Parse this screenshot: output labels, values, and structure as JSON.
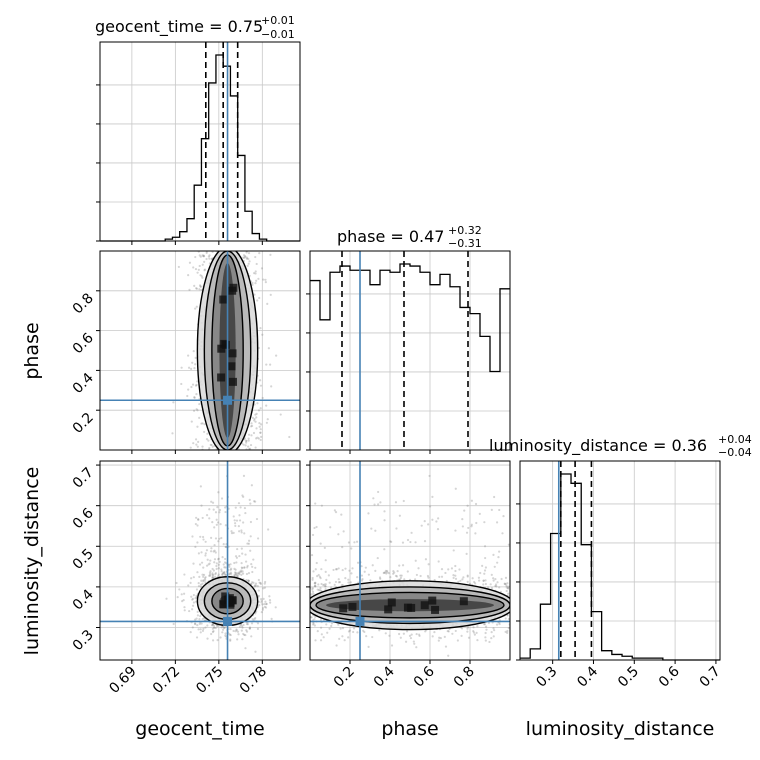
{
  "chart_data": {
    "type": "scatter",
    "kind": "corner-plot",
    "parameters": [
      "geocent_time",
      "phase",
      "luminosity_distance"
    ],
    "axis_labels": {
      "geocent_time": "geocent_time",
      "phase": "phase",
      "luminosity_distance": "luminosity_distance"
    },
    "ranges": {
      "geocent_time": [
        0.668,
        0.806
      ],
      "phase": [
        0.0,
        1.0
      ],
      "luminosity_distance": [
        0.22,
        0.71
      ]
    },
    "ticks": {
      "geocent_time": {
        "values": [
          0.69,
          0.72,
          0.75,
          0.78
        ],
        "labels": [
          "0.69",
          "0.72",
          "0.75",
          "0.78"
        ]
      },
      "phase": {
        "values": [
          0.2,
          0.4,
          0.6,
          0.8
        ],
        "labels": [
          "0.2",
          "0.4",
          "0.6",
          "0.8"
        ]
      },
      "luminosity_distance": {
        "values": [
          0.3,
          0.4,
          0.5,
          0.6,
          0.7
        ],
        "labels": [
          "0.3",
          "0.4",
          "0.5",
          "0.6",
          "0.7"
        ]
      }
    },
    "truths": {
      "geocent_time": 0.756,
      "phase": 0.25,
      "luminosity_distance": 0.315
    },
    "quantiles": {
      "geocent_time": [
        0.741,
        0.753,
        0.763
      ],
      "phase": [
        0.16,
        0.47,
        0.79
      ],
      "luminosity_distance": [
        0.32,
        0.355,
        0.395
      ]
    },
    "titles": {
      "geocent_time": {
        "main": "geocent_time = 0.75",
        "sup": "+0.01",
        "sub": "−0.01"
      },
      "phase": {
        "main": "phase = 0.47",
        "sup": "+0.32",
        "sub": "−0.31"
      },
      "luminosity_distance": {
        "main": "luminosity_distance = 0.36",
        "sup": "+0.04",
        "sub": "−0.04"
      }
    },
    "histograms": {
      "geocent_time": {
        "edges": [
          0.668,
          0.673,
          0.678,
          0.683,
          0.688,
          0.693,
          0.698,
          0.703,
          0.708,
          0.713,
          0.718,
          0.723,
          0.728,
          0.733,
          0.738,
          0.743,
          0.748,
          0.753,
          0.758,
          0.763,
          0.768,
          0.773,
          0.778,
          0.783,
          0.788,
          0.793,
          0.798,
          0.803,
          0.806
        ],
        "counts": [
          0,
          0,
          0,
          0,
          0,
          0,
          0,
          0,
          0,
          1,
          2,
          5,
          12,
          30,
          55,
          85,
          100,
          94,
          78,
          46,
          16,
          4,
          1,
          0,
          0,
          0,
          0,
          0
        ]
      },
      "phase": {
        "edges": [
          0.0,
          0.05,
          0.1,
          0.15,
          0.2,
          0.25,
          0.3,
          0.35,
          0.4,
          0.45,
          0.5,
          0.55,
          0.6,
          0.65,
          0.7,
          0.75,
          0.8,
          0.85,
          0.9,
          0.95,
          1.0
        ],
        "counts": [
          82,
          63,
          86,
          89,
          87,
          87,
          80,
          87,
          86,
          90,
          89,
          86,
          80,
          85,
          79,
          69,
          66,
          55,
          38,
          78
        ]
      },
      "luminosity_distance": {
        "edges": [
          0.22,
          0.245,
          0.27,
          0.295,
          0.32,
          0.345,
          0.37,
          0.395,
          0.42,
          0.445,
          0.47,
          0.495,
          0.52,
          0.545,
          0.57,
          0.595,
          0.62,
          0.645,
          0.67,
          0.695,
          0.71
        ],
        "counts": [
          1,
          6,
          30,
          68,
          100,
          95,
          62,
          26,
          5,
          3,
          2,
          1,
          1,
          1,
          0,
          0,
          0,
          0,
          0,
          0
        ]
      }
    },
    "pairs": [
      {
        "x": "geocent_time",
        "y": "phase",
        "x_sd": 0.008,
        "y_range": [
          0.0,
          1.0
        ]
      },
      {
        "x": "geocent_time",
        "y": "luminosity_distance",
        "x_sd": 0.008,
        "y_center": 0.365,
        "y_sd": 0.025
      },
      {
        "x": "phase",
        "y": "luminosity_distance",
        "x_range": [
          0.0,
          1.0
        ],
        "y_center": 0.355,
        "y_sd": 0.025
      }
    ],
    "colors": {
      "truth": "#4682b4",
      "hist": "#000000",
      "quantile": "#000000",
      "grid": "#c8c8c8",
      "scatter": "#888888"
    },
    "grid": true
  }
}
